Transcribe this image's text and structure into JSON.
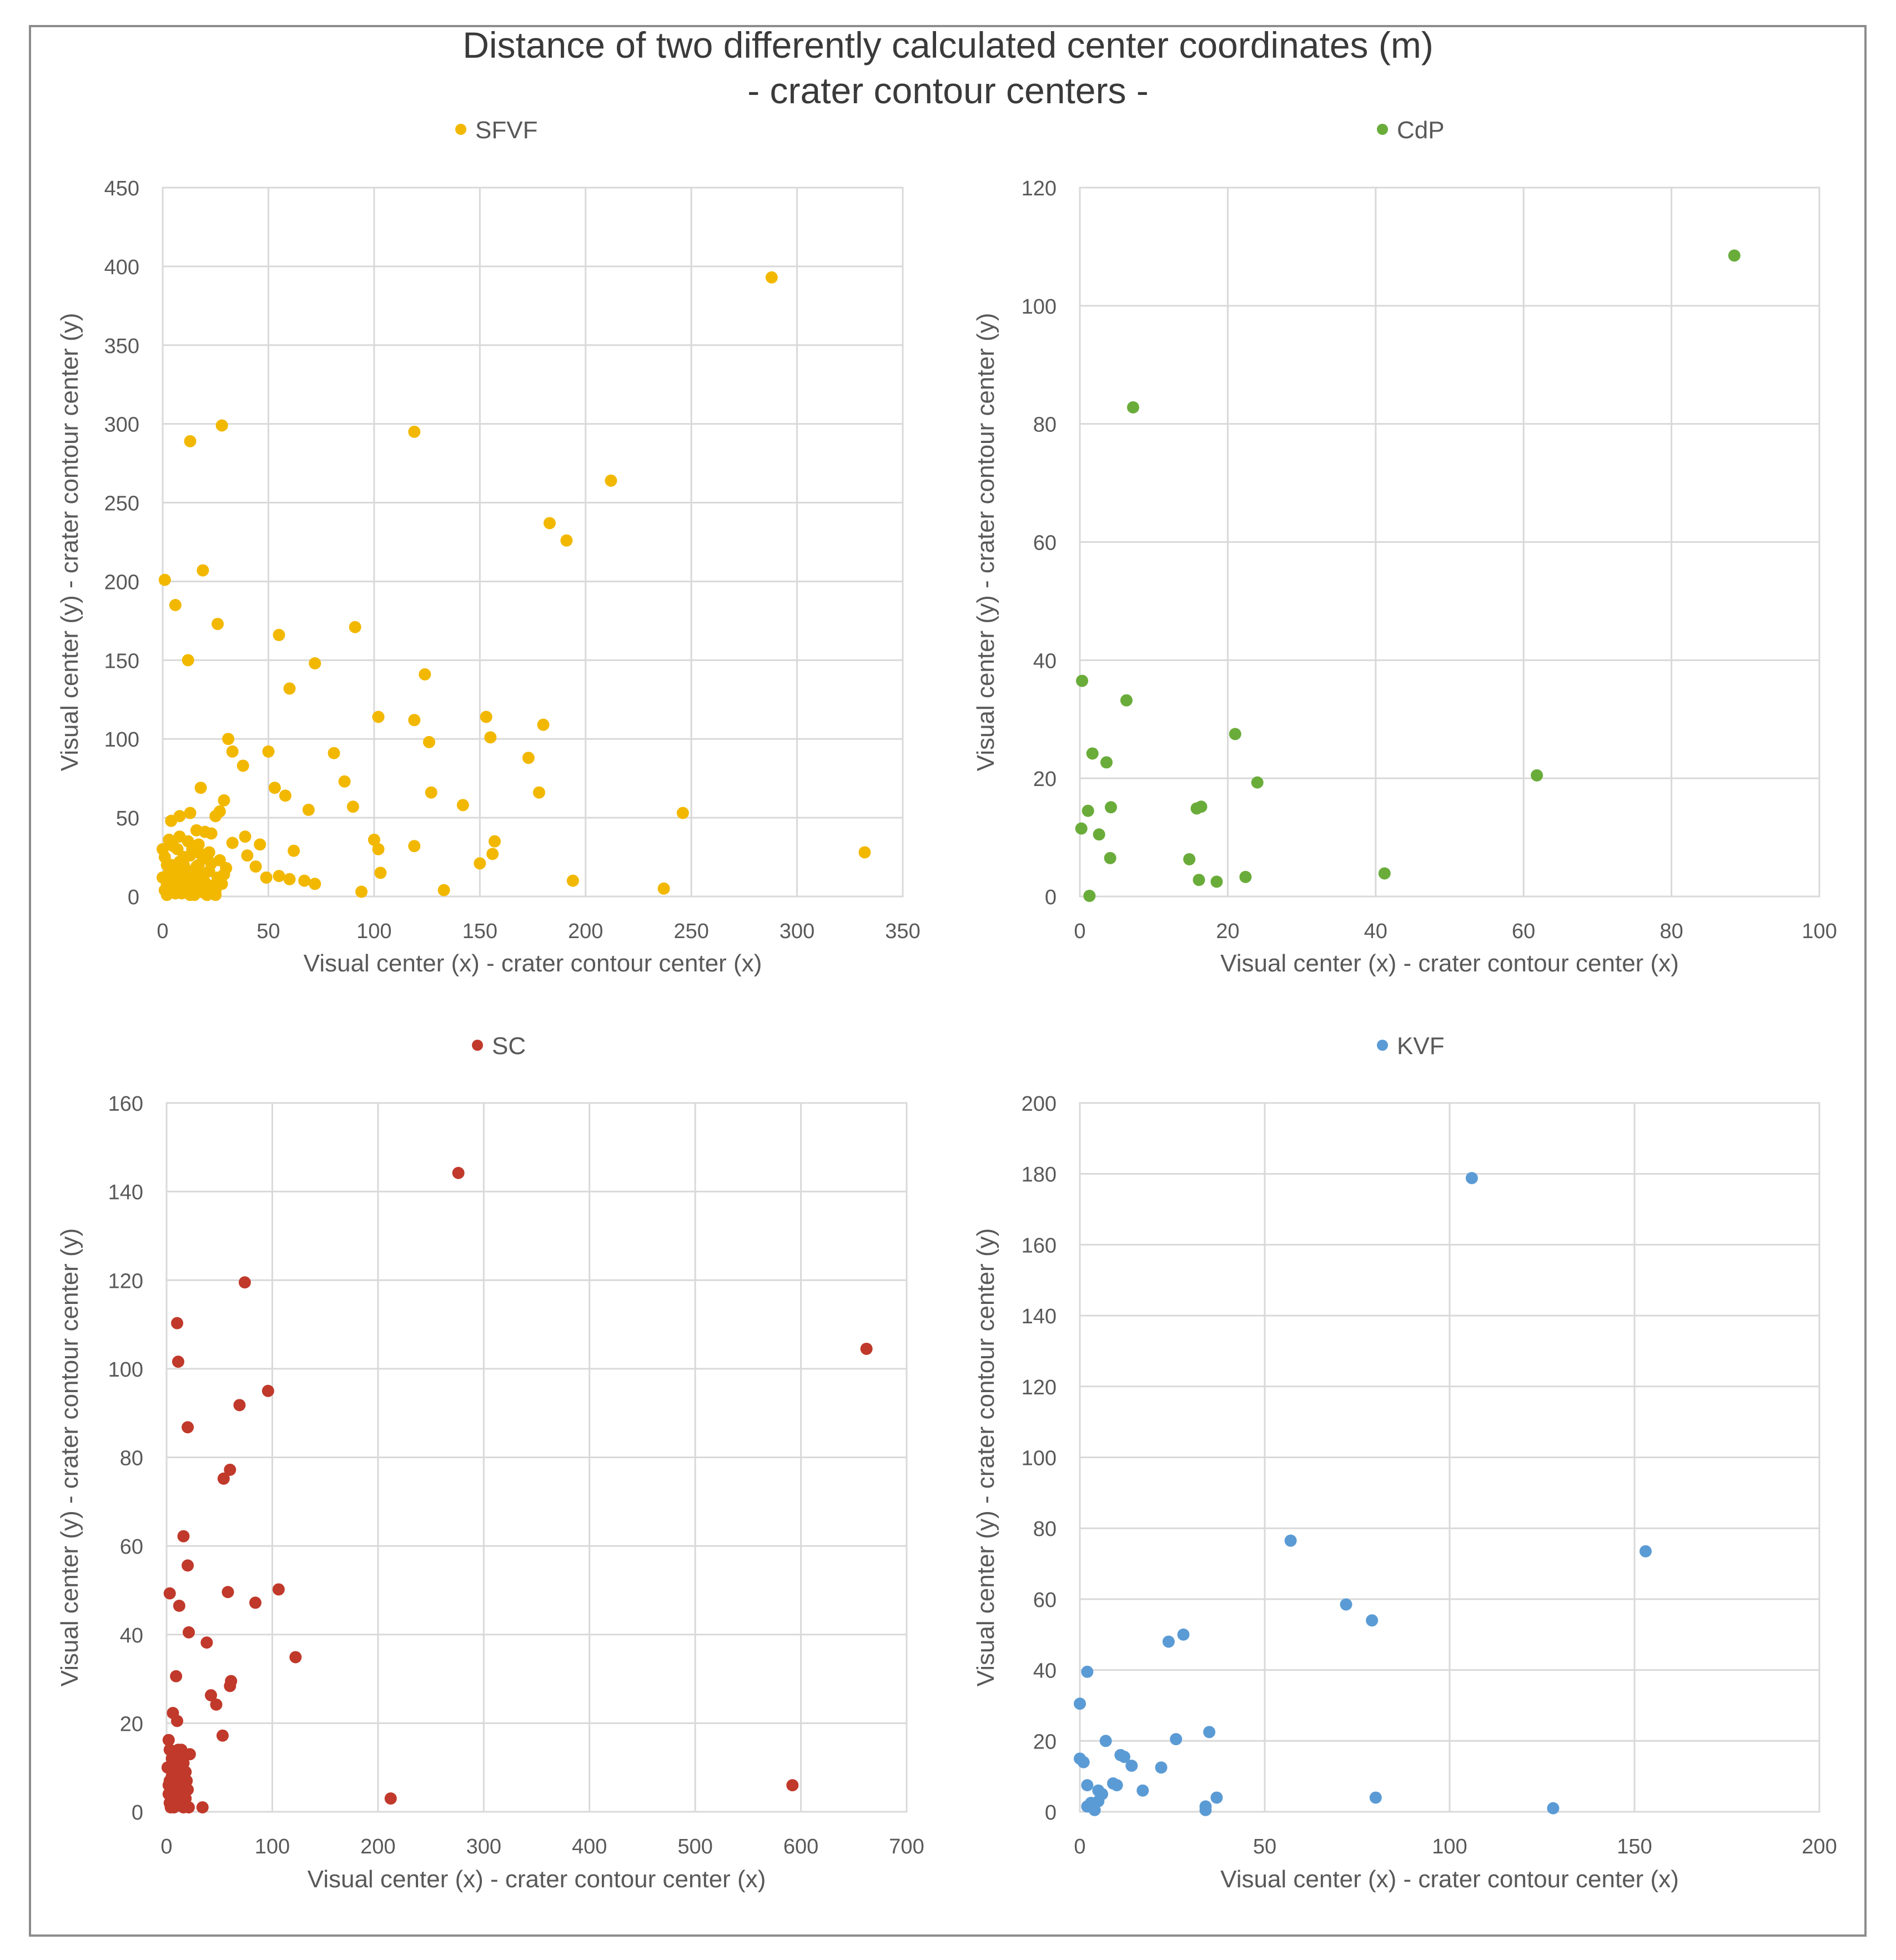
{
  "title": "Distance of two differently calculated center coordinates (m)",
  "subtitle": "- crater contour centers -",
  "colors": {
    "grid": "#d9d9d9",
    "text": "#595959",
    "frame": "#8c8c8c"
  },
  "chart_data": [
    {
      "type": "scatter",
      "id": "sfvf",
      "legend": "SFVF",
      "color": "#f2b800",
      "xlabel": "Visual center (x) - crater contour center (x)",
      "ylabel": "Visual center (y) - crater contour center (y)",
      "xlim": [
        0,
        350
      ],
      "ylim": [
        0,
        450
      ],
      "xticks": [
        0,
        50,
        100,
        150,
        200,
        250,
        300,
        350
      ],
      "yticks": [
        0,
        50,
        100,
        150,
        200,
        250,
        300,
        350,
        400,
        450
      ],
      "points": [
        [
          288,
          393
        ],
        [
          28,
          299
        ],
        [
          13,
          289
        ],
        [
          119,
          295
        ],
        [
          212,
          264
        ],
        [
          183,
          237
        ],
        [
          191,
          226
        ],
        [
          1,
          201
        ],
        [
          19,
          207
        ],
        [
          6,
          185
        ],
        [
          26,
          173
        ],
        [
          91,
          171
        ],
        [
          55,
          166
        ],
        [
          12,
          150
        ],
        [
          72,
          148
        ],
        [
          60,
          132
        ],
        [
          124,
          141
        ],
        [
          102,
          114
        ],
        [
          119,
          112
        ],
        [
          153,
          114
        ],
        [
          155,
          101
        ],
        [
          31,
          100
        ],
        [
          33,
          92
        ],
        [
          50,
          92
        ],
        [
          38,
          83
        ],
        [
          126,
          98
        ],
        [
          180,
          109
        ],
        [
          81,
          91
        ],
        [
          173,
          88
        ],
        [
          18,
          69
        ],
        [
          53,
          69
        ],
        [
          58,
          64
        ],
        [
          86,
          73
        ],
        [
          29,
          61
        ],
        [
          127,
          66
        ],
        [
          178,
          66
        ],
        [
          69,
          55
        ],
        [
          90,
          57
        ],
        [
          27,
          54
        ],
        [
          25,
          51
        ],
        [
          142,
          58
        ],
        [
          4,
          48
        ],
        [
          8,
          51
        ],
        [
          13,
          53
        ],
        [
          16,
          42
        ],
        [
          20,
          41
        ],
        [
          23,
          40
        ],
        [
          246,
          53
        ],
        [
          39,
          38
        ],
        [
          46,
          33
        ],
        [
          100,
          36
        ],
        [
          102,
          30
        ],
        [
          119,
          32
        ],
        [
          157,
          35
        ],
        [
          156,
          27
        ],
        [
          150,
          21
        ],
        [
          40,
          26
        ],
        [
          44,
          19
        ],
        [
          55,
          13
        ],
        [
          49,
          12
        ],
        [
          60,
          11
        ],
        [
          67,
          10
        ],
        [
          72,
          8
        ],
        [
          103,
          15
        ],
        [
          62,
          29
        ],
        [
          33,
          34
        ],
        [
          29,
          14
        ],
        [
          194,
          10
        ],
        [
          133,
          4
        ],
        [
          237,
          5
        ],
        [
          94,
          3
        ],
        [
          332,
          28
        ],
        [
          0,
          30
        ],
        [
          1,
          25
        ],
        [
          2,
          20
        ],
        [
          3,
          15
        ],
        [
          4,
          10
        ],
        [
          5,
          5
        ],
        [
          6,
          2
        ],
        [
          7,
          30
        ],
        [
          8,
          22
        ],
        [
          9,
          18
        ],
        [
          10,
          12
        ],
        [
          11,
          8
        ],
        [
          12,
          4
        ],
        [
          13,
          26
        ],
        [
          14,
          16
        ],
        [
          15,
          10
        ],
        [
          16,
          6
        ],
        [
          17,
          20
        ],
        [
          18,
          3
        ],
        [
          19,
          14
        ],
        [
          20,
          9
        ],
        [
          21,
          24
        ],
        [
          22,
          28
        ],
        [
          24,
          7
        ],
        [
          26,
          12
        ],
        [
          2,
          8
        ],
        [
          3,
          3
        ],
        [
          4,
          20
        ],
        [
          5,
          32
        ],
        [
          6,
          15
        ],
        [
          7,
          6
        ],
        [
          8,
          11
        ],
        [
          9,
          2
        ],
        [
          10,
          25
        ],
        [
          11,
          17
        ],
        [
          12,
          9
        ],
        [
          13,
          5
        ],
        [
          14,
          30
        ],
        [
          15,
          1
        ],
        [
          16,
          19
        ],
        [
          17,
          13
        ],
        [
          18,
          27
        ],
        [
          20,
          2
        ],
        [
          22,
          16
        ],
        [
          25,
          4
        ],
        [
          3,
          36
        ],
        [
          8,
          38
        ],
        [
          12,
          35
        ],
        [
          17,
          33
        ],
        [
          23,
          21
        ],
        [
          27,
          23
        ],
        [
          30,
          18
        ],
        [
          0,
          12
        ],
        [
          1,
          4
        ],
        [
          2,
          1
        ],
        [
          4,
          7
        ],
        [
          6,
          9
        ],
        [
          9,
          7
        ],
        [
          11,
          3
        ],
        [
          13,
          1
        ],
        [
          15,
          7
        ],
        [
          19,
          5
        ],
        [
          21,
          1
        ],
        [
          25,
          1
        ],
        [
          28,
          8
        ],
        [
          7,
          14
        ],
        [
          10,
          20
        ]
      ]
    },
    {
      "type": "scatter",
      "id": "cdp",
      "legend": "CdP",
      "color": "#6aac3a",
      "xlabel": "Visual center (x) - crater contour center (x)",
      "ylabel": "Visual center (y) - crater contour center (y)",
      "xlim": [
        0,
        100
      ],
      "ylim": [
        0,
        120
      ],
      "xticks": [
        0,
        20,
        40,
        60,
        80,
        100
      ],
      "yticks": [
        0,
        20,
        40,
        60,
        80,
        100,
        120
      ],
      "points": [
        [
          88.5,
          108.5
        ],
        [
          7.2,
          82.8
        ],
        [
          0.3,
          36.5
        ],
        [
          6.3,
          33.2
        ],
        [
          21,
          27.5
        ],
        [
          1.7,
          24.2
        ],
        [
          3.6,
          22.7
        ],
        [
          24,
          19.3
        ],
        [
          61.8,
          20.5
        ],
        [
          1.1,
          14.5
        ],
        [
          4.2,
          15.1
        ],
        [
          15.8,
          14.9
        ],
        [
          16.4,
          15.2
        ],
        [
          0.2,
          11.5
        ],
        [
          2.6,
          10.5
        ],
        [
          4.1,
          6.5
        ],
        [
          14.8,
          6.3
        ],
        [
          41.2,
          3.9
        ],
        [
          16.1,
          2.8
        ],
        [
          18.5,
          2.5
        ],
        [
          22.4,
          3.3
        ],
        [
          1.3,
          0.1
        ]
      ]
    },
    {
      "type": "scatter",
      "id": "sc",
      "legend": "SC",
      "color": "#c0392b",
      "xlabel": "Visual center (x) - crater contour center (x)",
      "ylabel": "Visual center (y) - crater contour center (y)",
      "xlim": [
        0,
        700
      ],
      "ylim": [
        0,
        160
      ],
      "xticks": [
        0,
        100,
        200,
        300,
        400,
        500,
        600,
        700
      ],
      "yticks": [
        0,
        20,
        40,
        60,
        80,
        100,
        120,
        140,
        160
      ],
      "points": [
        [
          276,
          144.2
        ],
        [
          74,
          119.5
        ],
        [
          662,
          104.5
        ],
        [
          10,
          110.3
        ],
        [
          11,
          101.6
        ],
        [
          96,
          95
        ],
        [
          69,
          91.8
        ],
        [
          20,
          86.8
        ],
        [
          60,
          77.2
        ],
        [
          54,
          75.2
        ],
        [
          16,
          62.2
        ],
        [
          20,
          55.6
        ],
        [
          106,
          50.2
        ],
        [
          58,
          49.6
        ],
        [
          84,
          47.2
        ],
        [
          3,
          49.3
        ],
        [
          12,
          46.5
        ],
        [
          21,
          40.5
        ],
        [
          38,
          38.2
        ],
        [
          122,
          34.9
        ],
        [
          9,
          30.6
        ],
        [
          61,
          29.5
        ],
        [
          60,
          28.4
        ],
        [
          42,
          26.3
        ],
        [
          47,
          24.2
        ],
        [
          6,
          22.3
        ],
        [
          10,
          20.5
        ],
        [
          53,
          17.2
        ],
        [
          2,
          16.2
        ],
        [
          592,
          6
        ],
        [
          212,
          3
        ],
        [
          34,
          1
        ],
        [
          3,
          14
        ],
        [
          5,
          12
        ],
        [
          7,
          10
        ],
        [
          9,
          8
        ],
        [
          11,
          6
        ],
        [
          13,
          4
        ],
        [
          15,
          2
        ],
        [
          17,
          13
        ],
        [
          19,
          7
        ],
        [
          4,
          1
        ],
        [
          6,
          3
        ],
        [
          8,
          5
        ],
        [
          10,
          9
        ],
        [
          12,
          11
        ],
        [
          14,
          14
        ],
        [
          16,
          1
        ],
        [
          18,
          3
        ],
        [
          2,
          6
        ],
        [
          3,
          2
        ],
        [
          5,
          8
        ],
        [
          7,
          1
        ],
        [
          9,
          12
        ],
        [
          11,
          14
        ],
        [
          13,
          2
        ],
        [
          1,
          10
        ],
        [
          15,
          9
        ],
        [
          20,
          5
        ],
        [
          22,
          13
        ],
        [
          6,
          6
        ],
        [
          8,
          2
        ],
        [
          10,
          4
        ],
        [
          12,
          7
        ],
        [
          14,
          5
        ],
        [
          16,
          11
        ],
        [
          18,
          9
        ],
        [
          4,
          10
        ],
        [
          2,
          4
        ],
        [
          21,
          1
        ],
        [
          17,
          4
        ],
        [
          3,
          7
        ]
      ]
    },
    {
      "type": "scatter",
      "id": "kvf",
      "legend": "KVF",
      "color": "#5b9bd5",
      "xlabel": "Visual center (x) - crater contour center (x)",
      "ylabel": "Visual center (y) - crater contour center (y)",
      "xlim": [
        0,
        200
      ],
      "ylim": [
        0,
        200
      ],
      "xticks": [
        0,
        50,
        100,
        150,
        200
      ],
      "yticks": [
        0,
        20,
        40,
        60,
        80,
        100,
        120,
        140,
        160,
        180,
        200
      ],
      "points": [
        [
          106,
          178.8
        ],
        [
          57,
          76.5
        ],
        [
          153,
          73.5
        ],
        [
          72,
          58.5
        ],
        [
          79,
          54
        ],
        [
          28,
          50
        ],
        [
          24,
          48
        ],
        [
          2,
          39.5
        ],
        [
          0,
          30.5
        ],
        [
          35,
          22.5
        ],
        [
          26,
          20.5
        ],
        [
          7,
          20
        ],
        [
          11,
          16
        ],
        [
          12,
          15.5
        ],
        [
          0,
          15
        ],
        [
          1,
          14
        ],
        [
          14,
          13
        ],
        [
          22,
          12.5
        ],
        [
          9,
          8
        ],
        [
          10,
          7.5
        ],
        [
          2,
          7.5
        ],
        [
          17,
          6
        ],
        [
          5,
          6
        ],
        [
          6,
          5
        ],
        [
          37,
          4
        ],
        [
          80,
          4
        ],
        [
          5,
          3
        ],
        [
          3,
          2.5
        ],
        [
          34,
          1.5
        ],
        [
          34,
          0.5
        ],
        [
          128,
          1
        ],
        [
          2,
          1.5
        ],
        [
          4,
          0.5
        ]
      ]
    }
  ]
}
